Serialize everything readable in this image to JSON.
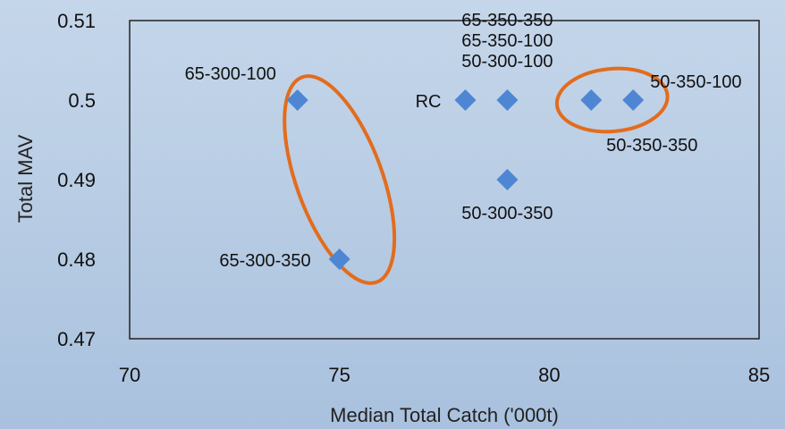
{
  "chart_data": {
    "type": "scatter",
    "title": "",
    "xlabel": "Median Total Catch ('000t)",
    "ylabel": "Total MAV",
    "xlim": [
      70,
      85
    ],
    "ylim": [
      0.47,
      0.51
    ],
    "xticks": [
      "70",
      "75",
      "80",
      "85"
    ],
    "yticks": [
      "0.47",
      "0.48",
      "0.49",
      "0.5",
      "0.51"
    ],
    "grid": false,
    "legend": "none",
    "marker_color": "#4f86d4",
    "highlight_color": "#e36c1d",
    "series": [
      {
        "points": [
          {
            "x": 74,
            "y": 0.5
          },
          {
            "x": 75,
            "y": 0.48
          },
          {
            "x": 78,
            "y": 0.5
          },
          {
            "x": 79,
            "y": 0.5
          },
          {
            "x": 79,
            "y": 0.49
          },
          {
            "x": 81,
            "y": 0.5
          },
          {
            "x": 82,
            "y": 0.5
          }
        ]
      }
    ],
    "annotations": [
      {
        "text": "65-300-100",
        "x": 74,
        "y": 0.5
      },
      {
        "text": "65-300-350",
        "x": 75,
        "y": 0.48
      },
      {
        "text": "RC",
        "x": 78,
        "y": 0.5
      },
      {
        "text": "65-350-350",
        "x": 79,
        "y": 0.5
      },
      {
        "text": "65-350-100",
        "x": 79,
        "y": 0.5
      },
      {
        "text": "50-300-100",
        "x": 79,
        "y": 0.5
      },
      {
        "text": "50-300-350",
        "x": 79,
        "y": 0.49
      },
      {
        "text": "50-350-350",
        "x": 81,
        "y": 0.5
      },
      {
        "text": "50-350-100",
        "x": 82,
        "y": 0.5
      }
    ],
    "highlights": [
      {
        "name": "group-65-300",
        "x_center": 75,
        "y_center": 0.49
      },
      {
        "name": "group-50-350",
        "x_center": 81.5,
        "y_center": 0.5
      }
    ]
  }
}
